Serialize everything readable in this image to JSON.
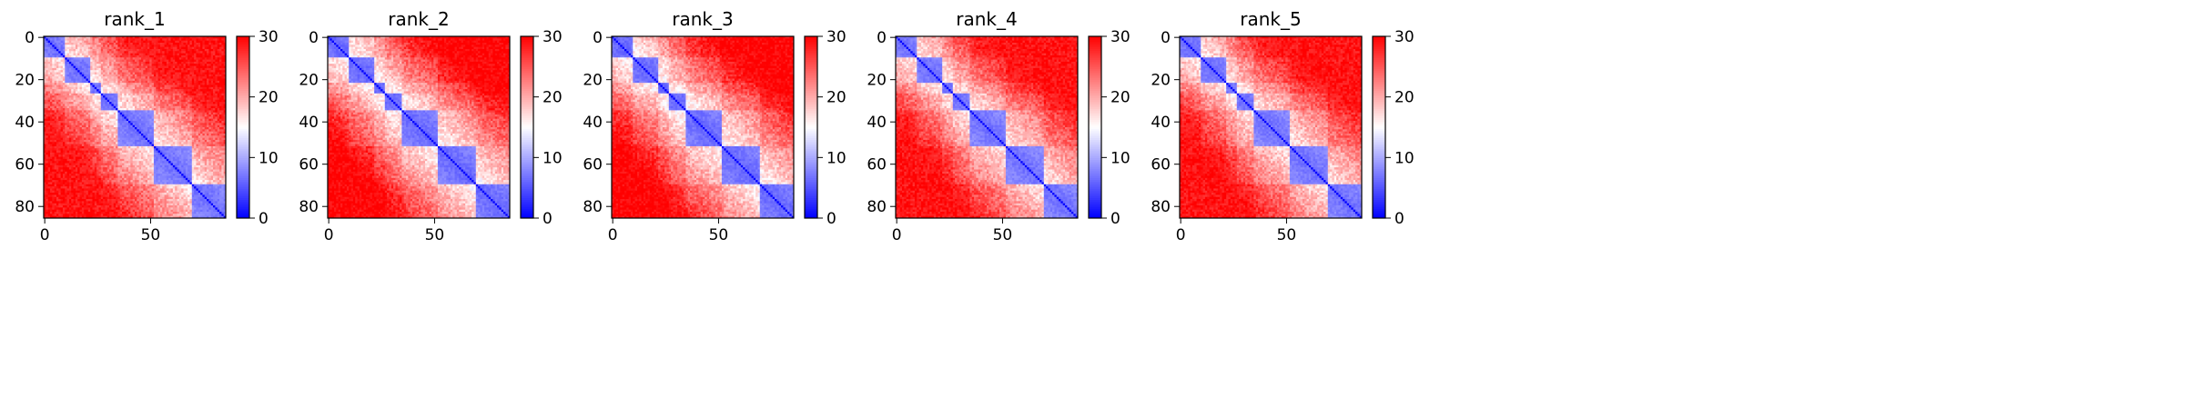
{
  "chart_data": [
    {
      "type": "heatmap",
      "title": "rank_1",
      "matrix_size": 86,
      "xticks": [
        0,
        50
      ],
      "yticks": [
        0,
        20,
        40,
        60,
        80
      ],
      "colorbar": {
        "min": 0,
        "max": 30,
        "ticks": [
          0,
          10,
          20,
          30
        ],
        "colormap": "bwr"
      },
      "block_boundaries": [
        0,
        10,
        22,
        27,
        35,
        52,
        70,
        86
      ],
      "background_level": 27,
      "block_level": 8
    },
    {
      "type": "heatmap",
      "title": "rank_2",
      "matrix_size": 86,
      "xticks": [
        0,
        50
      ],
      "yticks": [
        0,
        20,
        40,
        60,
        80
      ],
      "colorbar": {
        "min": 0,
        "max": 30,
        "ticks": [
          0,
          10,
          20,
          30
        ],
        "colormap": "bwr"
      },
      "block_boundaries": [
        0,
        10,
        22,
        27,
        35,
        52,
        70,
        86
      ],
      "background_level": 28,
      "block_level": 7
    },
    {
      "type": "heatmap",
      "title": "rank_3",
      "matrix_size": 86,
      "xticks": [
        0,
        50
      ],
      "yticks": [
        0,
        20,
        40,
        60,
        80
      ],
      "colorbar": {
        "min": 0,
        "max": 30,
        "ticks": [
          0,
          10,
          20,
          30
        ],
        "colormap": "bwr"
      },
      "block_boundaries": [
        0,
        10,
        22,
        27,
        35,
        52,
        70,
        86
      ],
      "background_level": 28,
      "block_level": 7
    },
    {
      "type": "heatmap",
      "title": "rank_4",
      "matrix_size": 86,
      "xticks": [
        0,
        50
      ],
      "yticks": [
        0,
        20,
        40,
        60,
        80
      ],
      "colorbar": {
        "min": 0,
        "max": 30,
        "ticks": [
          0,
          10,
          20,
          30
        ],
        "colormap": "bwr"
      },
      "block_boundaries": [
        0,
        10,
        22,
        27,
        35,
        52,
        70,
        86
      ],
      "background_level": 27,
      "block_level": 8
    },
    {
      "type": "heatmap",
      "title": "rank_5",
      "matrix_size": 86,
      "xticks": [
        0,
        50
      ],
      "yticks": [
        0,
        20,
        40,
        60,
        80
      ],
      "colorbar": {
        "min": 0,
        "max": 30,
        "ticks": [
          0,
          10,
          20,
          30
        ],
        "colormap": "bwr"
      },
      "block_boundaries": [
        0,
        10,
        22,
        27,
        35,
        52,
        70,
        86
      ],
      "background_level": 27,
      "block_level": 8
    }
  ],
  "colors": {
    "low": "#0000ff",
    "mid": "#ffffff",
    "high": "#ff0000"
  }
}
